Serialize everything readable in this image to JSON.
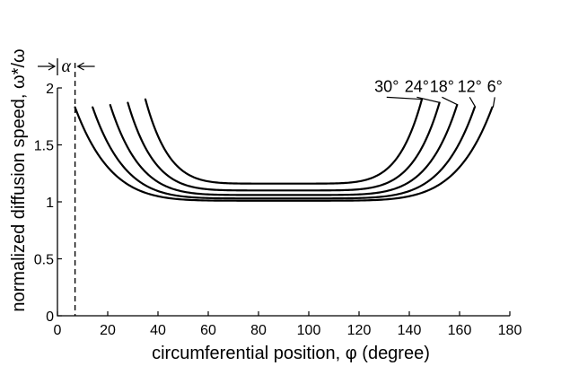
{
  "chart_data": {
    "type": "line",
    "title": "",
    "xlabel": "circumferential position, φ (degree)",
    "ylabel": "normalized diffusion speed, ω*/ω",
    "xlim": [
      0,
      180
    ],
    "ylim": [
      0,
      2
    ],
    "xticks": [
      0,
      20,
      40,
      60,
      80,
      100,
      120,
      140,
      160,
      180
    ],
    "yticks": [
      {
        "value": 0,
        "label": "0"
      },
      {
        "value": 0.5,
        "label": "0.5"
      },
      {
        "value": 1,
        "label": "1"
      },
      {
        "value": 1.5,
        "label": "1.5"
      },
      {
        "value": 2,
        "label": "2"
      }
    ],
    "grid": false,
    "series": [
      {
        "name": "6°",
        "start": 7,
        "end": 173,
        "min": 1.01,
        "peak": 1.83,
        "label_x": 174,
        "label_y": 1.95
      },
      {
        "name": "12°",
        "start": 14,
        "end": 166,
        "min": 1.03,
        "peak": 1.83,
        "label_x": 164,
        "label_y": 1.95
      },
      {
        "name": "18°",
        "start": 21,
        "end": 159,
        "min": 1.06,
        "peak": 1.85,
        "label_x": 153,
        "label_y": 1.95
      },
      {
        "name": "24°",
        "start": 28,
        "end": 152,
        "min": 1.1,
        "peak": 1.87,
        "label_x": 143,
        "label_y": 1.95
      },
      {
        "name": "30°",
        "start": 35,
        "end": 145,
        "min": 1.16,
        "peak": 1.9,
        "label_x": 131,
        "label_y": 1.95
      }
    ],
    "annotations": {
      "dashed_line_x": 7,
      "alpha_symbol": "α",
      "alpha_span": [
        0,
        7
      ]
    }
  }
}
